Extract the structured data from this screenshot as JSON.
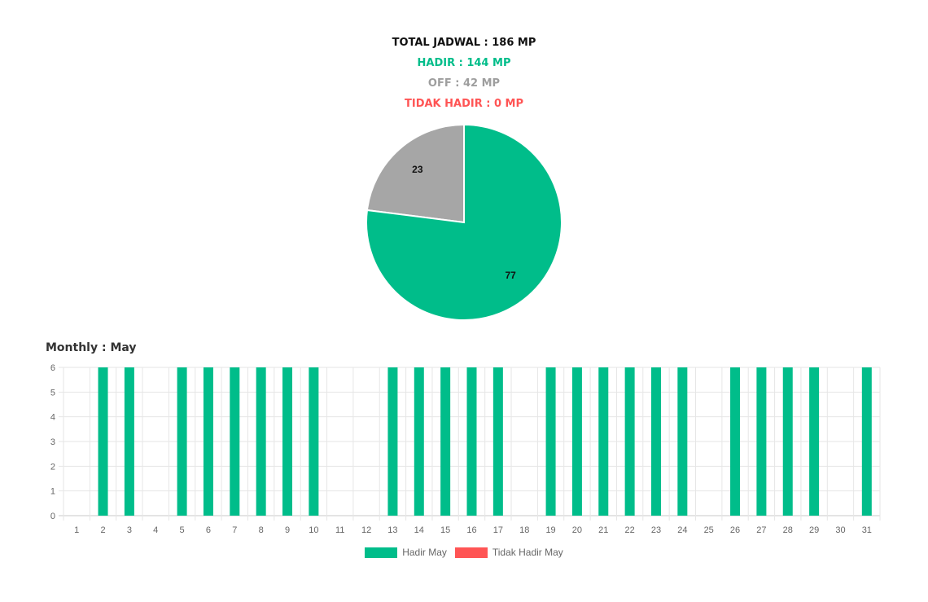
{
  "summary": {
    "total": "TOTAL JADWAL : 186 MP",
    "hadir": "HADIR : 144 MP",
    "off": "OFF : 42 MP",
    "tidak_hadir": "TIDAK HADIR : 0 MP"
  },
  "colors": {
    "hadir": "#00bd8a",
    "off": "#a6a6a6",
    "tidak_hadir": "#ff5454",
    "grid": "#e6e6e6",
    "tick": "#666666"
  },
  "monthly_title": "Monthly : May",
  "chart_data": [
    {
      "type": "pie",
      "slices": [
        {
          "label": "23",
          "value": 23,
          "color": "#a6a6a6"
        },
        {
          "label": "77",
          "value": 77,
          "color": "#00bd8a"
        }
      ]
    },
    {
      "type": "bar",
      "categories": [
        "1",
        "2",
        "3",
        "4",
        "5",
        "6",
        "7",
        "8",
        "9",
        "10",
        "11",
        "12",
        "13",
        "14",
        "15",
        "16",
        "17",
        "18",
        "19",
        "20",
        "21",
        "22",
        "23",
        "24",
        "25",
        "26",
        "27",
        "28",
        "29",
        "30",
        "31"
      ],
      "series": [
        {
          "name": "Hadir May",
          "color": "#00bd8a",
          "values": [
            0,
            6,
            6,
            0,
            6,
            6,
            6,
            6,
            6,
            6,
            0,
            0,
            6,
            6,
            6,
            6,
            6,
            0,
            6,
            6,
            6,
            6,
            6,
            6,
            0,
            6,
            6,
            6,
            6,
            0,
            6
          ]
        },
        {
          "name": "Tidak Hadir May",
          "color": "#ff5454",
          "values": [
            0,
            0,
            0,
            0,
            0,
            0,
            0,
            0,
            0,
            0,
            0,
            0,
            0,
            0,
            0,
            0,
            0,
            0,
            0,
            0,
            0,
            0,
            0,
            0,
            0,
            0,
            0,
            0,
            0,
            0,
            0
          ]
        }
      ],
      "ylim": [
        0,
        6
      ],
      "yticks": [
        "0",
        "1",
        "2",
        "3",
        "4",
        "5",
        "6"
      ],
      "grid": true,
      "legend_position": "bottom"
    }
  ]
}
